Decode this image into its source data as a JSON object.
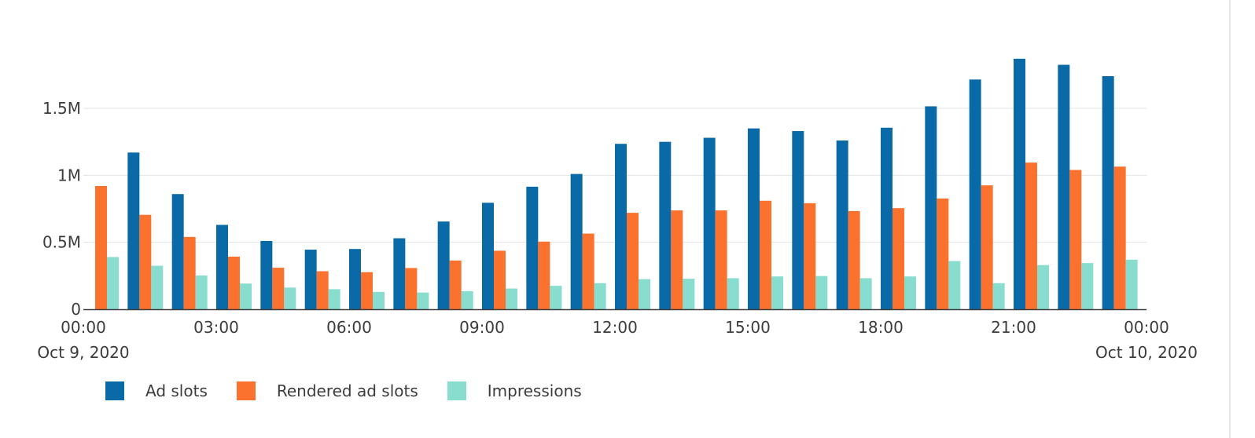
{
  "chart_data": {
    "type": "bar",
    "title": "",
    "xlabel": "",
    "ylabel": "",
    "ylim": [
      0,
      1950000
    ],
    "grid": true,
    "legend_position": "bottom-left",
    "categories": [
      "00:00",
      "01:00",
      "02:00",
      "03:00",
      "04:00",
      "05:00",
      "06:00",
      "07:00",
      "08:00",
      "09:00",
      "10:00",
      "11:00",
      "12:00",
      "13:00",
      "14:00",
      "15:00",
      "16:00",
      "17:00",
      "18:00",
      "19:00",
      "20:00",
      "21:00",
      "22:00",
      "23:00"
    ],
    "series": [
      {
        "name": "Ad slots",
        "color": "#0a6aa8",
        "values": [
          null,
          1170000,
          860000,
          630000,
          510000,
          445000,
          450000,
          530000,
          655000,
          795000,
          915000,
          1010000,
          1235000,
          1250000,
          1280000,
          1350000,
          1330000,
          1260000,
          1355000,
          1515000,
          1715000,
          1870000,
          1825000,
          1740000
        ]
      },
      {
        "name": "Rendered ad slots",
        "color": "#fb722e",
        "values": [
          920000,
          705000,
          540000,
          393000,
          310000,
          284000,
          277000,
          308000,
          364000,
          437000,
          505000,
          565000,
          720000,
          738000,
          738000,
          810000,
          792000,
          733000,
          755000,
          827000,
          925000,
          1095000,
          1040000,
          1065000
        ]
      },
      {
        "name": "Impressions",
        "color": "#88ddcf",
        "values": [
          390000,
          325000,
          252000,
          192000,
          162000,
          150000,
          130000,
          125000,
          135000,
          155000,
          175000,
          195000,
          225000,
          228000,
          232000,
          245000,
          248000,
          232000,
          245000,
          360000,
          195000,
          330000,
          345000,
          370000
        ]
      }
    ],
    "y_ticks": [
      {
        "value": 0,
        "label": "0"
      },
      {
        "value": 500000,
        "label": "0.5M"
      },
      {
        "value": 1000000,
        "label": "1M"
      },
      {
        "value": 1500000,
        "label": "1.5M"
      }
    ],
    "x_ticks": [
      {
        "hour": 0,
        "label": "00:00",
        "sub": "Oct 9, 2020"
      },
      {
        "hour": 3,
        "label": "03:00",
        "sub": ""
      },
      {
        "hour": 6,
        "label": "06:00",
        "sub": ""
      },
      {
        "hour": 9,
        "label": "09:00",
        "sub": ""
      },
      {
        "hour": 12,
        "label": "12:00",
        "sub": ""
      },
      {
        "hour": 15,
        "label": "15:00",
        "sub": ""
      },
      {
        "hour": 18,
        "label": "18:00",
        "sub": ""
      },
      {
        "hour": 21,
        "label": "21:00",
        "sub": ""
      },
      {
        "hour": 24,
        "label": "00:00",
        "sub": "Oct 10, 2020"
      }
    ]
  }
}
